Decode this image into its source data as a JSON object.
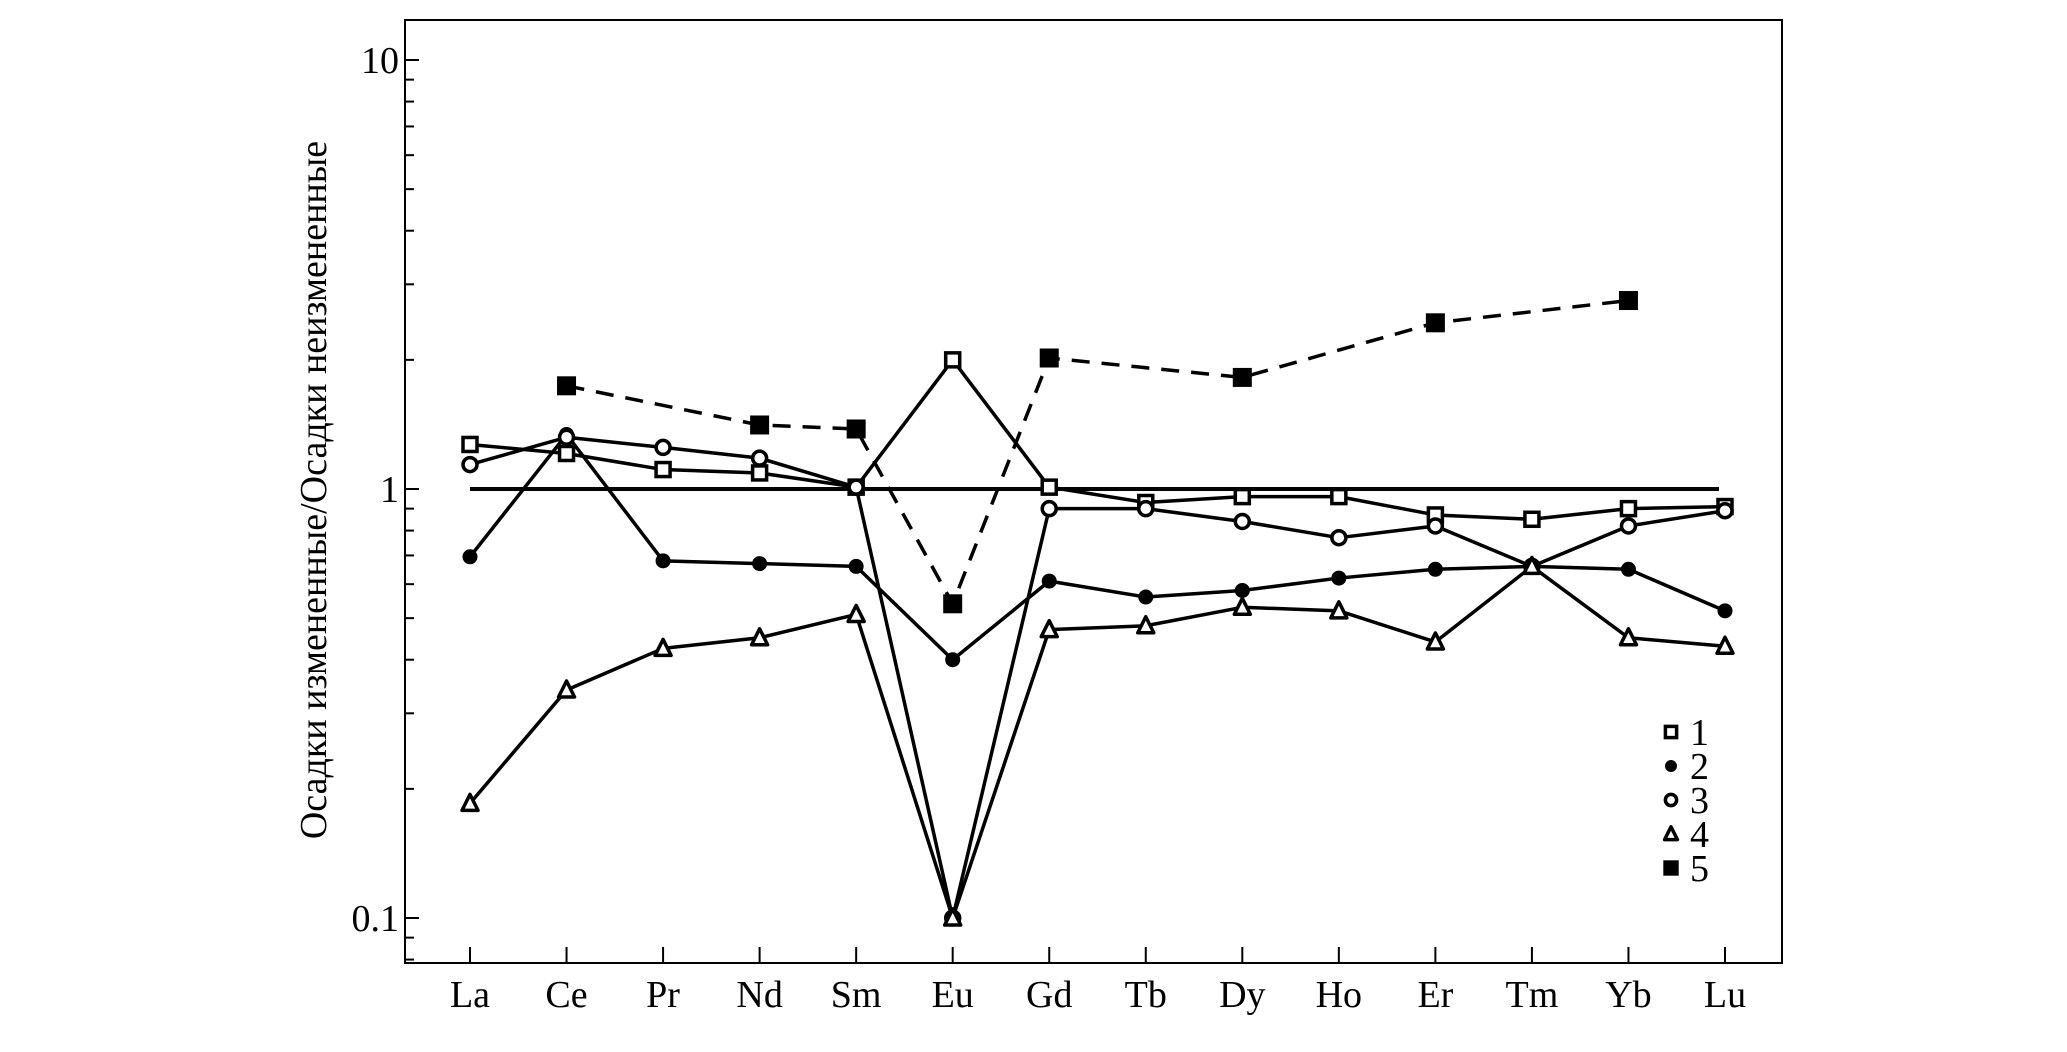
{
  "chart_data": {
    "type": "line",
    "ylabel": "Осадки измененные/Осадки неизмененные",
    "xlabel": "",
    "yscale": "log",
    "ylim": [
      0.08,
      12
    ],
    "yticks": [
      {
        "value": 10,
        "label": "10"
      },
      {
        "value": 1,
        "label": "1"
      },
      {
        "value": 0.1,
        "label": "0.1"
      }
    ],
    "categories": [
      "La",
      "Ce",
      "Pr",
      "Nd",
      "Sm",
      "Eu",
      "Gd",
      "Tb",
      "Dy",
      "Ho",
      "Er",
      "Tm",
      "Yb",
      "Lu"
    ],
    "reference_line": {
      "value": 1
    },
    "legend_position": "bottom-right",
    "grid": false,
    "series": [
      {
        "name": "1",
        "marker": "open-square",
        "dashed": false,
        "values": [
          1.27,
          1.21,
          1.11,
          1.09,
          1.01,
          2.0,
          1.01,
          0.93,
          0.96,
          0.96,
          0.87,
          0.85,
          0.9,
          0.91
        ]
      },
      {
        "name": "2",
        "marker": "filled-circle",
        "dashed": false,
        "values": [
          0.695,
          1.34,
          0.68,
          0.67,
          0.66,
          0.4,
          0.61,
          0.56,
          0.58,
          0.62,
          0.65,
          0.66,
          0.65,
          0.52
        ]
      },
      {
        "name": "3",
        "marker": "open-circle",
        "dashed": false,
        "values": [
          1.14,
          1.32,
          1.25,
          1.18,
          1.01,
          0.1,
          0.9,
          0.9,
          0.84,
          0.77,
          0.82,
          0.66,
          0.82,
          0.89
        ]
      },
      {
        "name": "4",
        "marker": "open-triangle",
        "dashed": false,
        "values": [
          0.185,
          0.34,
          0.425,
          0.45,
          0.51,
          0.1,
          0.47,
          0.48,
          0.53,
          0.52,
          0.44,
          0.66,
          0.45,
          0.43
        ]
      },
      {
        "name": "5",
        "marker": "filled-square",
        "dashed": true,
        "values": [
          null,
          1.74,
          null,
          1.41,
          1.38,
          0.54,
          2.02,
          null,
          1.82,
          null,
          2.44,
          null,
          2.75,
          null
        ]
      }
    ]
  }
}
